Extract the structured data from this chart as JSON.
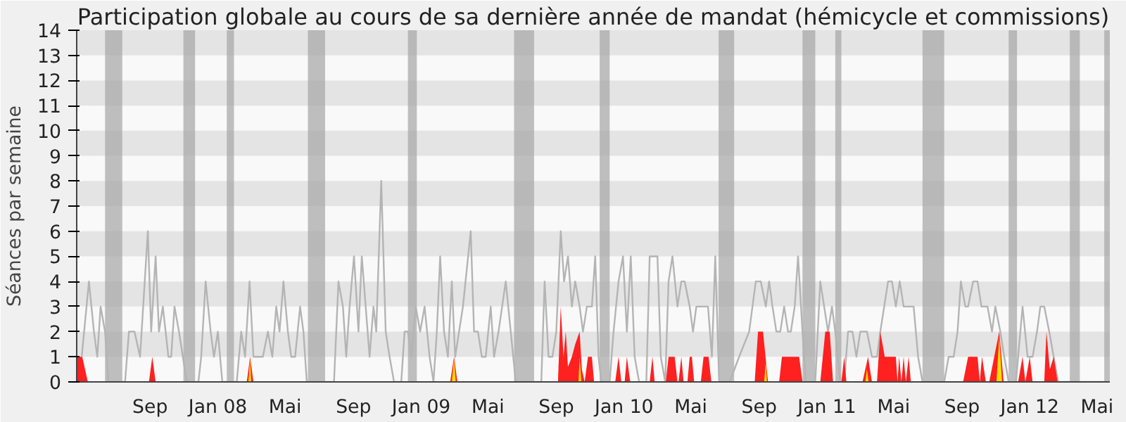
{
  "chart_data": {
    "type": "line",
    "title": "Participation globale au cours de sa dernière année de mandat (hémicycle et commissions)",
    "ylabel": "Séances par semaine",
    "xlim": [
      "2007-04-22",
      "2012-05-24"
    ],
    "ylim": [
      0,
      14
    ],
    "yticks": [
      0,
      1,
      2,
      3,
      4,
      5,
      6,
      7,
      8,
      9,
      10,
      11,
      12,
      13,
      14
    ],
    "xticks": [
      {
        "value": "2007-09-01",
        "label": "Sep"
      },
      {
        "value": "2008-01-01",
        "label": "Jan 08"
      },
      {
        "value": "2008-05-01",
        "label": "Mai"
      },
      {
        "value": "2008-09-01",
        "label": "Sep"
      },
      {
        "value": "2009-01-01",
        "label": "Jan 09"
      },
      {
        "value": "2009-05-01",
        "label": "Mai"
      },
      {
        "value": "2009-09-01",
        "label": "Sep"
      },
      {
        "value": "2010-01-01",
        "label": "Jan 10"
      },
      {
        "value": "2010-05-01",
        "label": "Mai"
      },
      {
        "value": "2010-09-01",
        "label": "Sep"
      },
      {
        "value": "2011-01-01",
        "label": "Jan 11"
      },
      {
        "value": "2011-05-01",
        "label": "Mai"
      },
      {
        "value": "2011-09-01",
        "label": "Sep"
      },
      {
        "value": "2012-01-01",
        "label": "Jan 12"
      },
      {
        "value": "2012-05-01",
        "label": "Mai"
      }
    ],
    "bands": [
      {
        "axis": "x",
        "from": "2007-06-12",
        "to": "2007-07-13",
        "color": "#aaaaaa"
      },
      {
        "axis": "x",
        "from": "2007-10-31",
        "to": "2007-11-21",
        "color": "#aaaaaa"
      },
      {
        "axis": "x",
        "from": "2008-01-17",
        "to": "2008-01-30",
        "color": "#aaaaaa"
      },
      {
        "axis": "x",
        "from": "2008-06-11",
        "to": "2008-07-12",
        "color": "#aaaaaa"
      },
      {
        "axis": "x",
        "from": "2008-12-08",
        "to": "2008-12-24",
        "color": "#aaaaaa"
      },
      {
        "axis": "x",
        "from": "2009-06-17",
        "to": "2009-07-23",
        "color": "#aaaaaa"
      },
      {
        "axis": "x",
        "from": "2009-11-18",
        "to": "2009-12-06",
        "color": "#aaaaaa"
      },
      {
        "axis": "x",
        "from": "2010-06-20",
        "to": "2010-07-18",
        "color": "#aaaaaa"
      },
      {
        "axis": "x",
        "from": "2010-11-18",
        "to": "2010-12-11",
        "color": "#aaaaaa"
      },
      {
        "axis": "x",
        "from": "2011-01-16",
        "to": "2011-01-27",
        "color": "#aaaaaa"
      },
      {
        "axis": "x",
        "from": "2011-06-22",
        "to": "2011-07-31",
        "color": "#aaaaaa"
      },
      {
        "axis": "x",
        "from": "2011-11-24",
        "to": "2011-12-09",
        "color": "#aaaaaa"
      },
      {
        "axis": "x",
        "from": "2012-03-13",
        "to": "2012-03-31",
        "color": "#aaaaaa"
      },
      {
        "axis": "x",
        "from": "2012-05-14",
        "to": "2012-05-24",
        "color": "#aaaaaa"
      }
    ],
    "series": [
      {
        "color": "#b4b4b4",
        "x": [
          "2007-05-01",
          "2007-05-14",
          "2007-05-23",
          "2007-05-29",
          "2007-06-04",
          "2007-06-12",
          "2007-06-18",
          "2007-07-18",
          "2007-07-25",
          "2007-08-04",
          "2007-08-14",
          "2007-08-28",
          "2007-09-03",
          "2007-09-11",
          "2007-09-17",
          "2007-09-24",
          "2007-09-29",
          "2007-10-04",
          "2007-10-09",
          "2007-10-15",
          "2007-10-23",
          "2007-10-30",
          "2007-11-06",
          "2007-11-27",
          "2007-12-02",
          "2007-12-10",
          "2007-12-19",
          "2007-12-25",
          "2008-01-01",
          "2008-01-09",
          "2008-02-04",
          "2008-02-12",
          "2008-02-19",
          "2008-02-27",
          "2008-03-05",
          "2008-03-13",
          "2008-03-22",
          "2008-03-31",
          "2008-04-08",
          "2008-04-15",
          "2008-04-21",
          "2008-04-28",
          "2008-05-06",
          "2008-05-12",
          "2008-05-19",
          "2008-05-28",
          "2008-06-03",
          "2008-06-09",
          "2008-07-28",
          "2008-08-05",
          "2008-08-13",
          "2008-08-19",
          "2008-08-25",
          "2008-09-02",
          "2008-09-10",
          "2008-09-16",
          "2008-09-23",
          "2008-09-30",
          "2008-10-07",
          "2008-10-12",
          "2008-10-21",
          "2008-10-29",
          "2008-11-05",
          "2008-11-13",
          "2008-11-26",
          "2008-12-02",
          "2008-12-08",
          "2008-12-14",
          "2008-12-22",
          "2008-12-30",
          "2009-01-07",
          "2009-01-16",
          "2009-01-23",
          "2009-01-29",
          "2009-02-04",
          "2009-02-11",
          "2009-02-18",
          "2009-02-25",
          "2009-03-03",
          "2009-03-17",
          "2009-03-31",
          "2009-04-06",
          "2009-04-13",
          "2009-04-20",
          "2009-04-27",
          "2009-05-06",
          "2009-05-12",
          "2009-05-20",
          "2009-06-02",
          "2009-06-11",
          "2009-06-20",
          "2009-08-05",
          "2009-08-11",
          "2009-08-18",
          "2009-08-25",
          "2009-09-01",
          "2009-09-09",
          "2009-09-15",
          "2009-09-22",
          "2009-09-29",
          "2009-10-05",
          "2009-10-13",
          "2009-10-19",
          "2009-10-26",
          "2009-11-04",
          "2009-11-10",
          "2009-11-16",
          "2009-11-21",
          "2009-12-06",
          "2009-12-13",
          "2009-12-22",
          "2009-12-30",
          "2010-01-06",
          "2010-01-13",
          "2010-01-20",
          "2010-01-28",
          "2010-02-10",
          "2010-02-16",
          "2010-03-02",
          "2010-03-08",
          "2010-03-16",
          "2010-03-22",
          "2010-03-29",
          "2010-04-07",
          "2010-04-14",
          "2010-04-20",
          "2010-04-29",
          "2010-05-05",
          "2010-05-11",
          "2010-06-01",
          "2010-06-08",
          "2010-06-14",
          "2010-06-21",
          "2010-07-10",
          "2010-07-27",
          "2010-08-14",
          "2010-08-26",
          "2010-09-04",
          "2010-09-13",
          "2010-09-19",
          "2010-09-25",
          "2010-10-02",
          "2010-10-09",
          "2010-10-16",
          "2010-10-23",
          "2010-10-28",
          "2010-11-04",
          "2010-11-10",
          "2010-11-18",
          "2010-11-24",
          "2010-12-11",
          "2010-12-20",
          "2010-12-27",
          "2011-01-03",
          "2011-01-10",
          "2011-01-16",
          "2011-01-25",
          "2011-02-01",
          "2011-02-08",
          "2011-02-16",
          "2011-02-23",
          "2011-03-02",
          "2011-03-14",
          "2011-03-23",
          "2011-04-01",
          "2011-04-07",
          "2011-04-21",
          "2011-04-28",
          "2011-05-05",
          "2011-05-12",
          "2011-05-19",
          "2011-06-06",
          "2011-06-14",
          "2011-06-22",
          "2011-07-31",
          "2011-08-08",
          "2011-08-17",
          "2011-08-24",
          "2011-08-30",
          "2011-09-07",
          "2011-09-12",
          "2011-09-21",
          "2011-09-29",
          "2011-10-06",
          "2011-10-17",
          "2011-10-25",
          "2011-10-31",
          "2011-11-09",
          "2011-11-16",
          "2011-11-24",
          "2011-12-07",
          "2011-12-19",
          "2011-12-28",
          "2012-01-06",
          "2012-01-14",
          "2012-01-20",
          "2012-01-27",
          "2012-02-05",
          "2012-02-13",
          "2012-02-21",
          "2012-05-24"
        ],
        "values": [
          1,
          4,
          2,
          1,
          3,
          2,
          0,
          0,
          2,
          2,
          1,
          6,
          2,
          5,
          2,
          3,
          2,
          1,
          1,
          3,
          2,
          1,
          0,
          0,
          1,
          4,
          2,
          1,
          2,
          0,
          0,
          2,
          1,
          4,
          1,
          1,
          1,
          2,
          1,
          3,
          2,
          4,
          2,
          1,
          1,
          3,
          2,
          0,
          0,
          4,
          3,
          1,
          3,
          5,
          2,
          5,
          3,
          1,
          3,
          2,
          8,
          2,
          1,
          0,
          0,
          2,
          2,
          1,
          3,
          2,
          3,
          1,
          0,
          2,
          5,
          2,
          1,
          4,
          1,
          3,
          6,
          2,
          2,
          1,
          1,
          3,
          1,
          2,
          4,
          2,
          0,
          0,
          4,
          1,
          1,
          2,
          6,
          4,
          5,
          3,
          4,
          3,
          2,
          3,
          3,
          5,
          1,
          0,
          0,
          2,
          4,
          5,
          2,
          5,
          1,
          0,
          0,
          5,
          5,
          1,
          0,
          4,
          5,
          3,
          4,
          4,
          3,
          2,
          3,
          3,
          1,
          5,
          0,
          0,
          1,
          2,
          4,
          4,
          3,
          4,
          3,
          2,
          2,
          3,
          2,
          2,
          3,
          5,
          2,
          0,
          0,
          4,
          3,
          2,
          3,
          2,
          0,
          0,
          2,
          2,
          1,
          2,
          2,
          1,
          1,
          2,
          4,
          4,
          3,
          4,
          3,
          3,
          1,
          0,
          0,
          1,
          1,
          2,
          4,
          3,
          3,
          4,
          4,
          3,
          3,
          2,
          3,
          2,
          1,
          0,
          0,
          3,
          1,
          1,
          2,
          3,
          3,
          2,
          1,
          0,
          0
        ]
      },
      {
        "type": "area",
        "color": "#ff2020",
        "x": [
          "2007-04-22",
          "2007-05-02",
          "2007-05-12",
          "2007-08-30",
          "2007-09-05",
          "2007-09-11",
          "2008-02-22",
          "2008-02-28",
          "2008-03-05",
          "2009-02-22",
          "2009-03-01",
          "2009-03-07",
          "2009-09-04",
          "2009-09-09",
          "2009-09-14",
          "2009-09-18",
          "2009-09-22",
          "2009-09-29",
          "2009-10-05",
          "2009-10-13",
          "2009-10-17",
          "2009-10-22",
          "2009-10-28",
          "2009-11-04",
          "2009-11-08",
          "2009-12-16",
          "2009-12-22",
          "2009-12-27",
          "2010-01-02",
          "2010-01-06",
          "2010-01-12",
          "2010-02-16",
          "2010-02-21",
          "2010-02-25",
          "2010-03-17",
          "2010-03-22",
          "2010-04-02",
          "2010-04-07",
          "2010-04-09",
          "2010-04-14",
          "2010-04-18",
          "2010-04-25",
          "2010-04-29",
          "2010-05-03",
          "2010-05-07",
          "2010-05-11",
          "2010-05-19",
          "2010-05-24",
          "2010-06-02",
          "2010-06-07",
          "2010-08-24",
          "2010-08-30",
          "2010-09-08",
          "2010-09-17",
          "2010-10-07",
          "2010-10-12",
          "2010-11-12",
          "2010-11-18",
          "2010-12-20",
          "2010-12-29",
          "2011-01-06",
          "2011-01-12",
          "2011-01-27",
          "2011-02-01",
          "2011-02-05",
          "2011-03-06",
          "2011-03-16",
          "2011-03-23",
          "2011-04-01",
          "2011-04-07",
          "2011-04-15",
          "2011-04-28",
          "2011-05-05",
          "2011-05-08",
          "2011-05-11",
          "2011-05-15",
          "2011-05-19",
          "2011-05-23",
          "2011-05-28",
          "2011-06-01",
          "2011-09-03",
          "2011-09-12",
          "2011-09-29",
          "2011-10-03",
          "2011-10-07",
          "2011-10-14",
          "2011-10-20",
          "2011-11-07",
          "2011-11-15",
          "2011-12-11",
          "2011-12-19",
          "2011-12-24",
          "2012-01-01",
          "2012-01-06",
          "2012-01-27",
          "2012-01-31",
          "2012-02-06",
          "2012-02-13",
          "2012-02-20"
        ],
        "values": [
          1,
          1,
          0,
          0,
          1,
          0,
          0,
          1,
          0,
          0,
          1,
          0,
          0,
          3,
          1,
          2,
          0.6,
          1,
          1.5,
          2,
          0.5,
          0,
          1,
          1,
          0,
          0,
          1,
          0,
          0,
          1,
          0,
          0,
          1,
          0,
          0,
          1,
          1,
          0,
          0,
          1,
          0,
          0,
          1,
          1,
          0,
          0,
          0,
          1,
          1,
          0,
          0,
          2,
          2,
          0,
          0,
          1,
          1,
          0,
          0,
          2,
          2,
          0,
          0,
          1,
          0,
          0,
          1,
          0,
          0,
          2,
          1,
          1,
          1,
          0,
          1,
          0,
          1,
          0,
          1,
          0,
          0,
          1,
          1,
          0,
          1,
          0,
          0,
          2,
          0,
          0,
          1,
          0,
          1,
          0,
          0,
          2,
          0.5,
          1,
          0
        ]
      },
      {
        "type": "area",
        "color": "#ffdd00",
        "x": [
          "2008-02-25",
          "2008-02-28",
          "2008-03-01",
          "2009-02-25",
          "2009-03-01",
          "2009-03-04",
          "2009-10-11",
          "2009-10-13",
          "2009-10-16",
          "2010-09-10",
          "2010-09-13",
          "2010-09-15",
          "2011-03-11",
          "2011-03-14",
          "2011-03-17",
          "2011-11-02",
          "2011-11-07",
          "2011-11-12"
        ],
        "values": [
          0,
          0.9,
          0,
          0,
          0.9,
          0,
          0,
          1,
          0,
          0,
          0.8,
          0,
          0,
          0.5,
          0,
          0,
          1.8,
          0
        ]
      }
    ]
  }
}
